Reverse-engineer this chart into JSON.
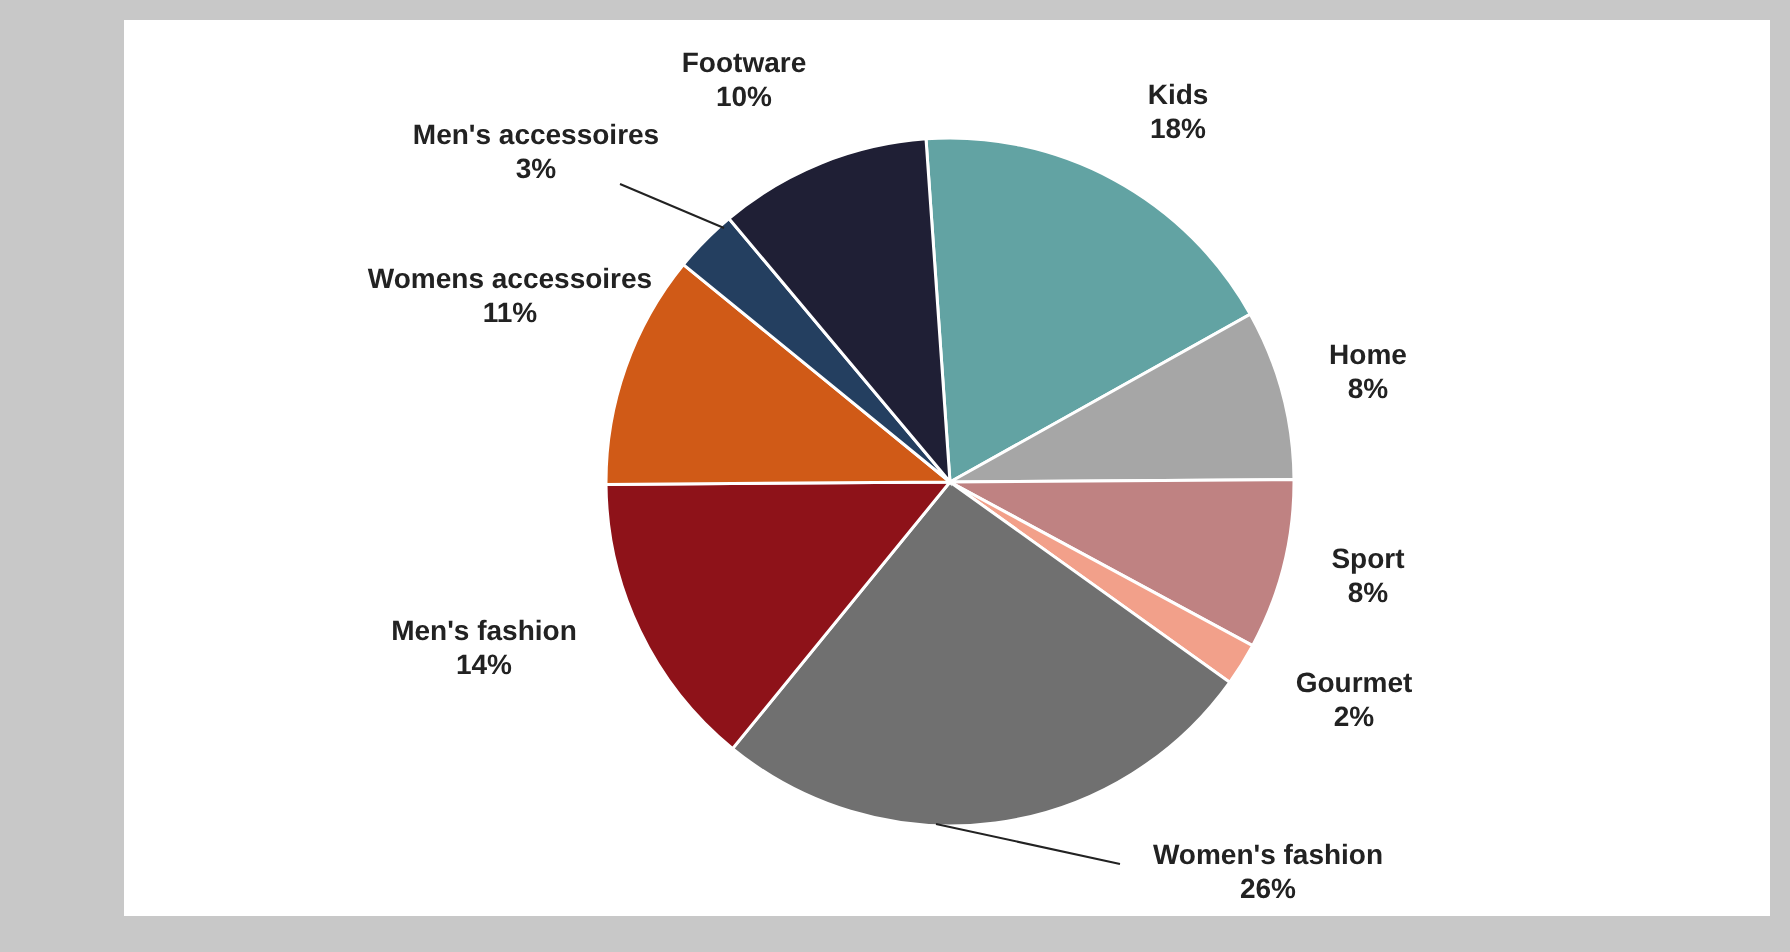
{
  "chart_data": {
    "type": "pie",
    "categories": [
      "Kids",
      "Home",
      "Sport",
      "Gourmet",
      "Women's fashion",
      "Men's fashion",
      "Womens accessoires",
      "Men's accessoires",
      "Footware"
    ],
    "values": [
      18,
      8,
      8,
      2,
      26,
      14,
      11,
      3,
      10
    ],
    "colors": [
      "#62a3a3",
      "#a6a6a6",
      "#bf8282",
      "#f2a08a",
      "#707070",
      "#8e1219",
      "#d05a17",
      "#243f60",
      "#1f1f35"
    ],
    "value_labels": [
      "18%",
      "8%",
      "8%",
      "2%",
      "26%",
      "14%",
      "11%",
      "3%",
      "10%"
    ]
  }
}
